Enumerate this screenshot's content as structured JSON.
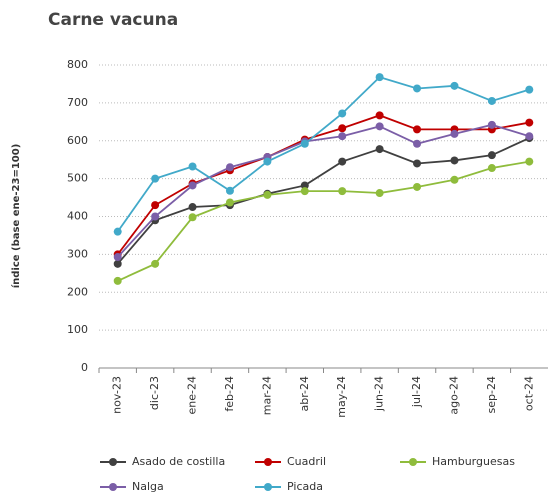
{
  "chart_data": {
    "type": "line",
    "title": "Carne vacuna",
    "y_label": "índice (base ene-23=100)",
    "categories": [
      "nov-23",
      "dic-23",
      "ene-24",
      "feb-24",
      "mar-24",
      "abr-24",
      "may-24",
      "jun-24",
      "jul-24",
      "ago-24",
      "sep-24",
      "oct-24"
    ],
    "series": [
      {
        "name": "Asado de costilla",
        "color": "#404040",
        "values": [
          275,
          390,
          425,
          430,
          460,
          482,
          545,
          578,
          540,
          548,
          562,
          607
        ]
      },
      {
        "name": "Cuadril",
        "color": "#c00000",
        "values": [
          300,
          430,
          487,
          522,
          557,
          603,
          633,
          667,
          630,
          630,
          630,
          648
        ]
      },
      {
        "name": "Hamburguesas",
        "color": "#8fbc3c",
        "values": [
          230,
          275,
          398,
          437,
          457,
          467,
          467,
          462,
          478,
          497,
          528,
          545
        ]
      },
      {
        "name": "Nalga",
        "color": "#7b5ea7",
        "values": [
          293,
          400,
          482,
          530,
          557,
          598,
          612,
          638,
          592,
          618,
          642,
          612
        ]
      },
      {
        "name": "Picada",
        "color": "#41a9c9",
        "values": [
          360,
          500,
          532,
          468,
          545,
          592,
          672,
          768,
          738,
          745,
          705,
          735
        ]
      }
    ],
    "ylim": [
      0,
      800
    ],
    "yticks": [
      0,
      100,
      200,
      300,
      400,
      500,
      600,
      700,
      800
    ],
    "grid": true,
    "legend": "bottom"
  }
}
